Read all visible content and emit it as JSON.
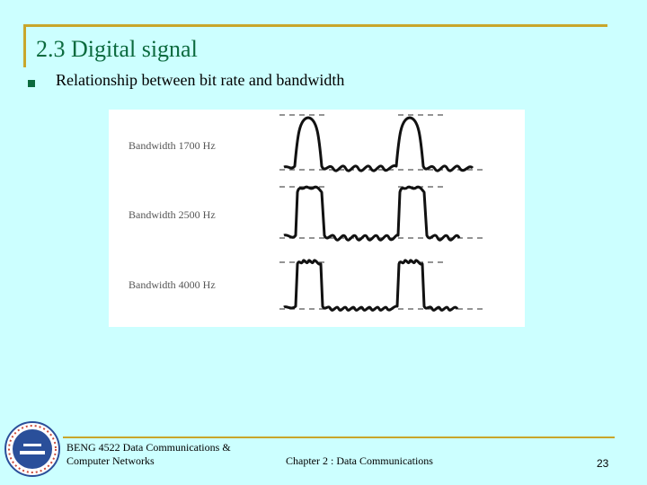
{
  "slide": {
    "title": "2.3 Digital signal",
    "bullet": "Relationship between bit rate and bandwidth"
  },
  "figure": {
    "labels": [
      "Bandwidth 1700 Hz",
      "Bandwidth 2500 Hz",
      "Bandwidth 4000 Hz"
    ]
  },
  "footer": {
    "course_line1": "BENG 4522 Data Communications &",
    "course_line2": "Computer Networks",
    "chapter": "Chapter 2 : Data Communications",
    "page": "23"
  },
  "colors": {
    "background": "#ccffff",
    "accent_rule": "#c8a62b",
    "title": "#0b6a3e"
  }
}
